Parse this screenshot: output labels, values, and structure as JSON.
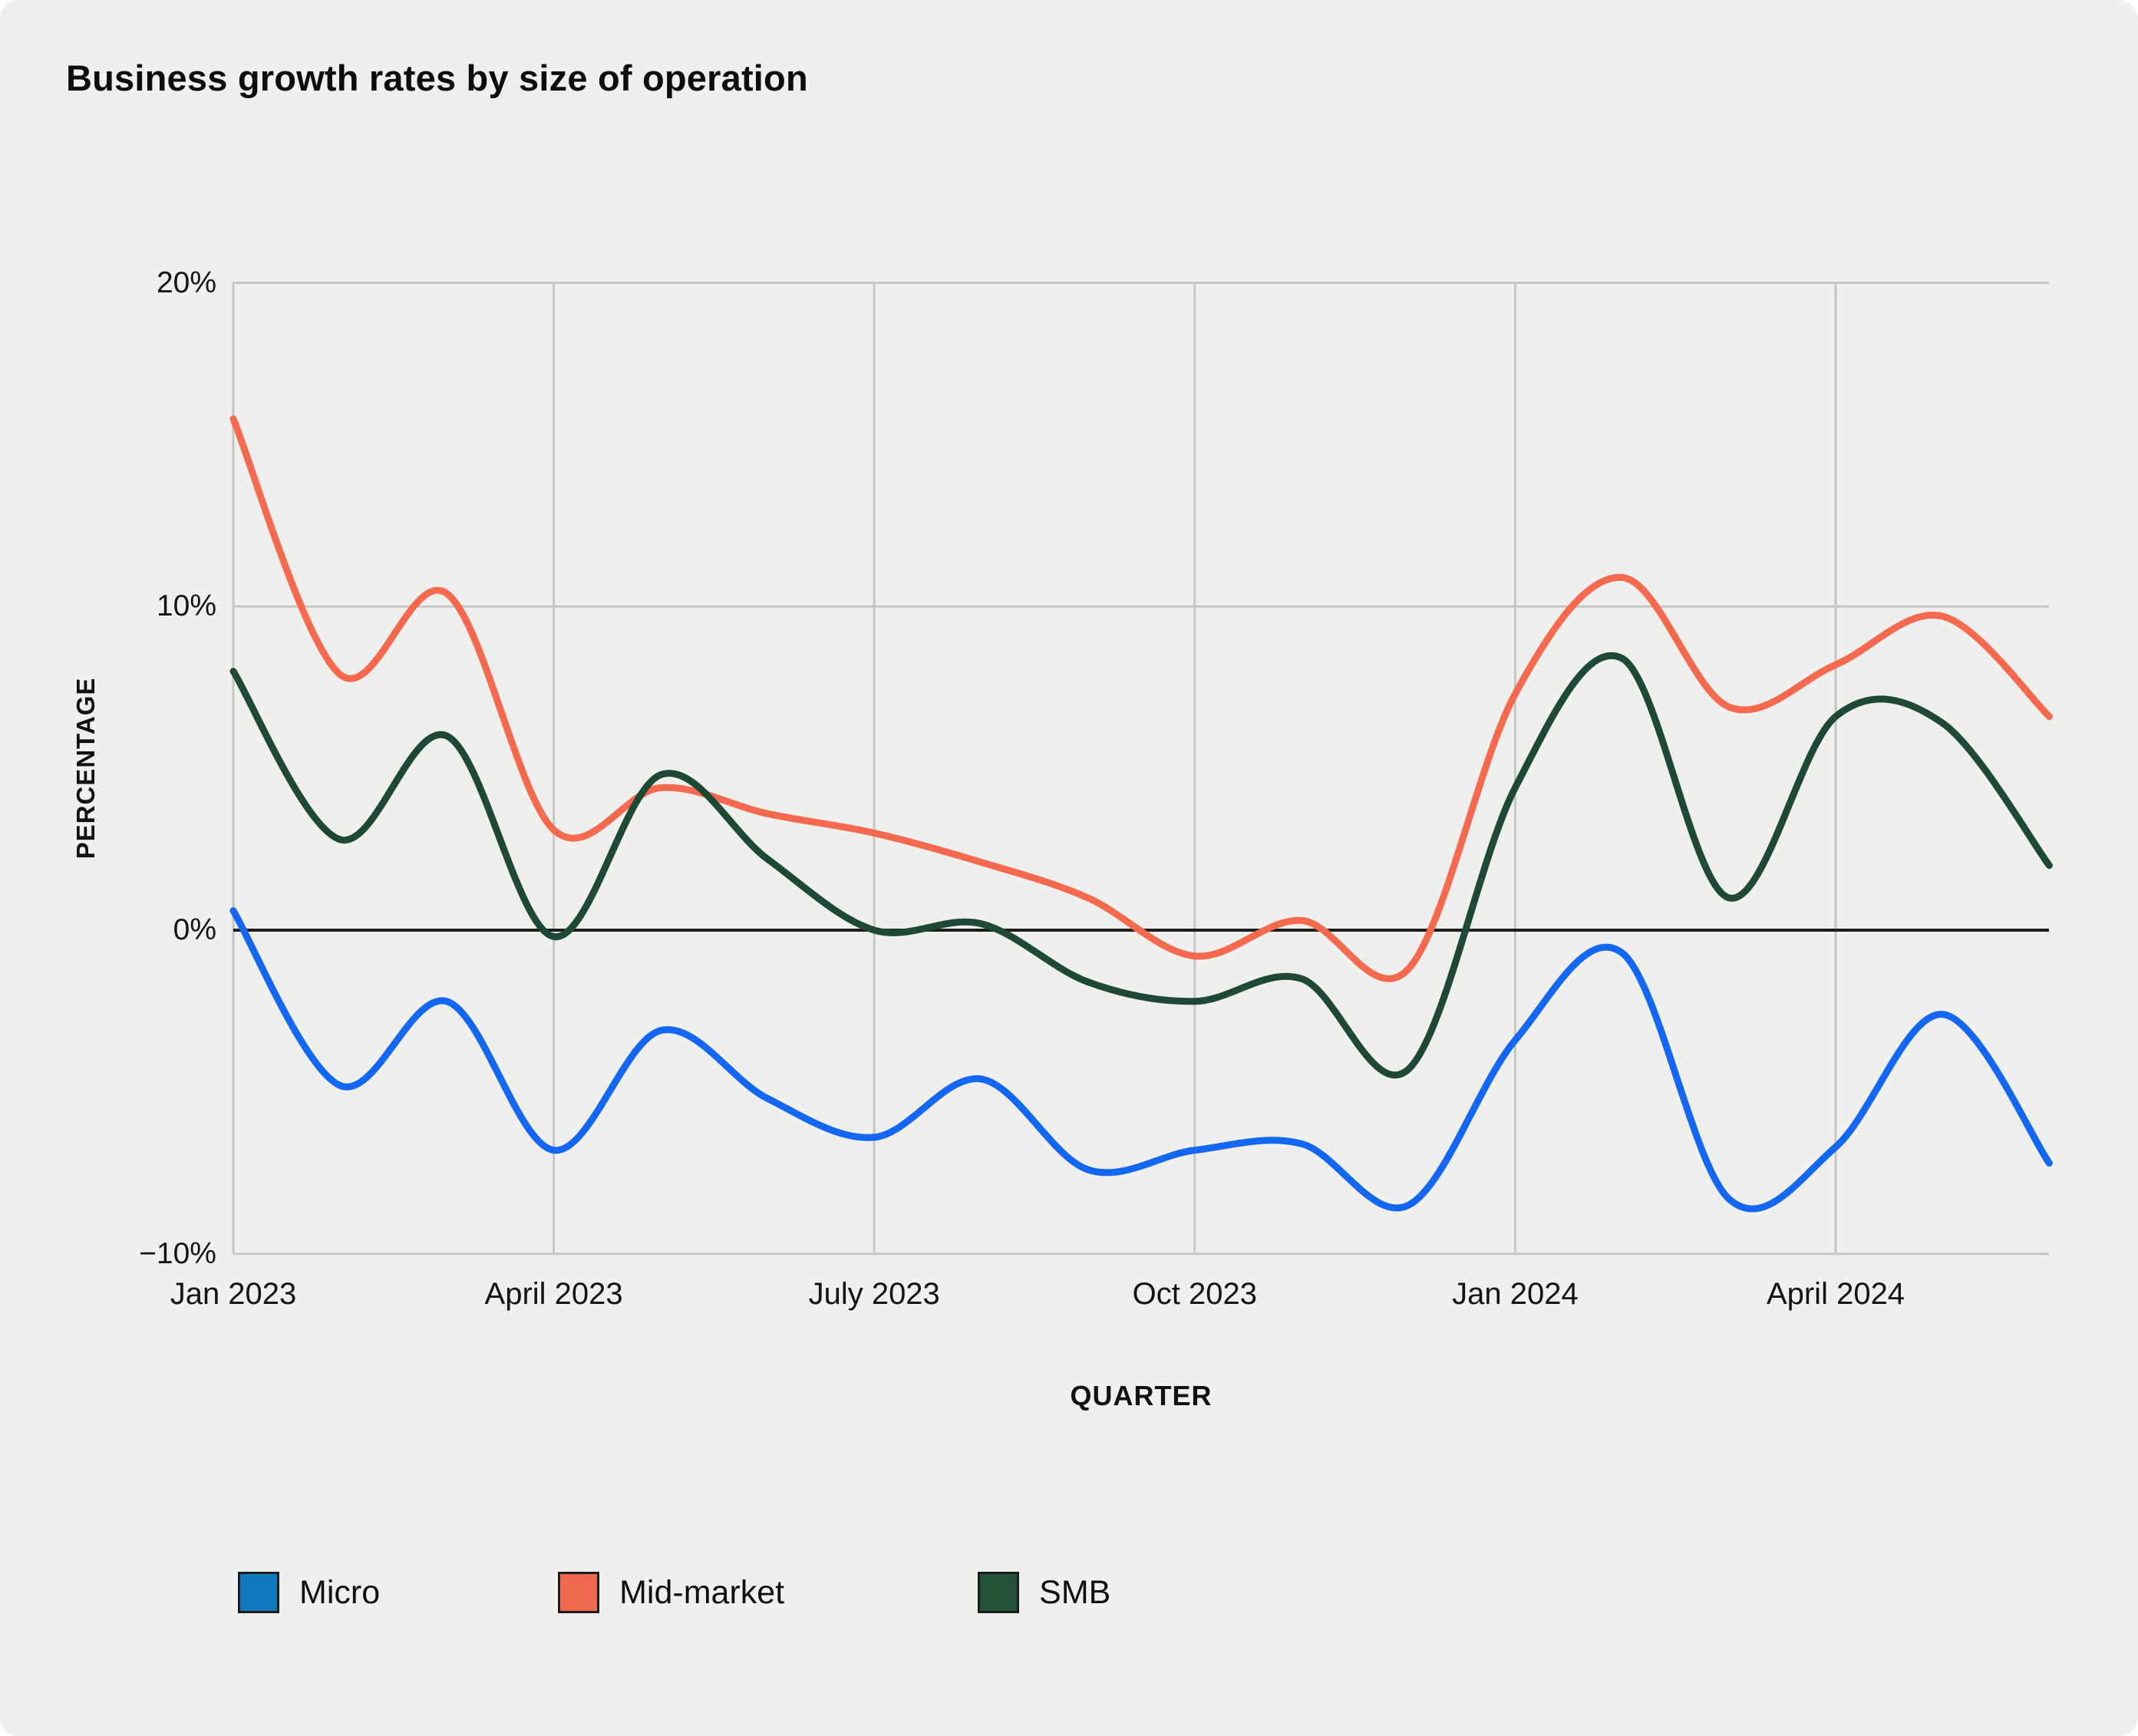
{
  "title": "Business growth rates by size of operation",
  "chart_data": {
    "type": "line",
    "title": "Business growth rates by size of operation",
    "xlabel": "QUARTER",
    "ylabel": "PERCENTAGE",
    "ylim": [
      -10,
      20
    ],
    "grid": true,
    "zero_line": true,
    "legend_position": "bottom",
    "x": [
      "Jan 2023",
      "Feb 2023",
      "Mar 2023",
      "Apr 2023",
      "May 2023",
      "Jun 2023",
      "Jul 2023",
      "Aug 2023",
      "Sep 2023",
      "Oct 2023",
      "Nov 2023",
      "Dec 2023",
      "Jan 2024",
      "Feb 2024",
      "Mar 2024",
      "Apr 2024",
      "May 2024",
      "Jun 2024"
    ],
    "x_tick_indices": [
      0,
      3,
      6,
      9,
      12,
      15
    ],
    "x_tick_labels": [
      "Jan 2023",
      "April 2023",
      "July 2023",
      "Oct 2023",
      "Jan 2024",
      "April 2024"
    ],
    "y_ticks": [
      {
        "value": 20,
        "label": "20%"
      },
      {
        "value": 10,
        "label": "10%"
      },
      {
        "value": 0,
        "label": "0%"
      },
      {
        "value": -10,
        "label": "−10%"
      }
    ],
    "series": [
      {
        "name": "Micro",
        "line_color": "#1467f2",
        "swatch_color": "#0e79be",
        "values": [
          0.6,
          -4.8,
          -2.2,
          -6.8,
          -3.1,
          -5.2,
          -6.4,
          -4.6,
          -7.4,
          -6.8,
          -6.6,
          -8.5,
          -3.4,
          -0.7,
          -8.3,
          -6.7,
          -2.6,
          -7.2
        ]
      },
      {
        "name": "Mid-market",
        "line_color": "#f5694e",
        "swatch_color": "#ef6950",
        "values": [
          15.8,
          7.9,
          10.4,
          3.1,
          4.4,
          3.6,
          3.0,
          2.1,
          1.0,
          -0.8,
          0.3,
          -1.2,
          7.3,
          10.9,
          6.9,
          8.2,
          9.7,
          6.6
        ]
      },
      {
        "name": "SMB",
        "line_color": "#1e4934",
        "swatch_color": "#23513a",
        "values": [
          8.0,
          2.8,
          6.0,
          -0.2,
          4.8,
          2.2,
          0.0,
          0.2,
          -1.6,
          -2.2,
          -1.5,
          -4.3,
          4.4,
          8.4,
          1.0,
          6.6,
          6.4,
          2.0
        ]
      }
    ],
    "colors": {
      "card_background": "#efefed",
      "grid": "#c6c6c4",
      "zero_line": "#1d1d1b",
      "text": "#111111"
    }
  }
}
